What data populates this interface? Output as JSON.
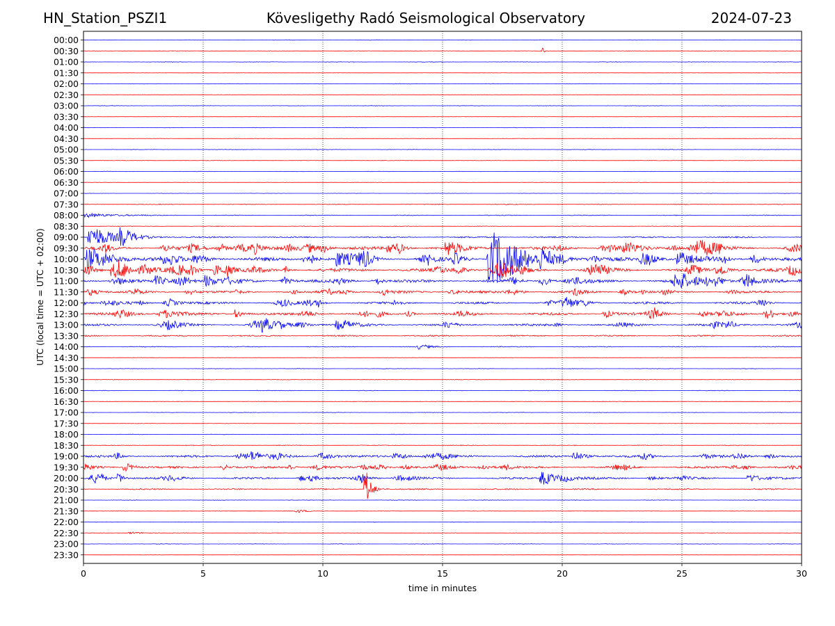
{
  "header": {
    "station": "HN_Station_PSZI1",
    "title": "Kövesligethy Radó Seismological Observatory",
    "date": "2024-07-23"
  },
  "colors": {
    "trace_a": "#0000ff",
    "trace_b": "#ff0000",
    "frame": "#000000",
    "grid": "#000000"
  },
  "chart_data": {
    "type": "line",
    "subtype": "helicorder",
    "title": "Kövesligethy Radó Seismological Observatory",
    "xlabel": "time in minutes",
    "ylabel": "UTC (local time = UTC + 02:00)",
    "xlim": [
      0,
      30
    ],
    "x_ticks": [
      "0",
      "5",
      "10",
      "15",
      "20",
      "25",
      "30"
    ],
    "x_gridlines": [
      5,
      10,
      15,
      20,
      25
    ],
    "row_labels": [
      "00:00",
      "00:30",
      "01:00",
      "01:30",
      "02:00",
      "02:30",
      "03:00",
      "03:30",
      "04:00",
      "04:30",
      "05:00",
      "05:30",
      "06:00",
      "06:30",
      "07:00",
      "07:30",
      "08:00",
      "08:30",
      "09:00",
      "09:30",
      "10:00",
      "10:30",
      "11:00",
      "11:30",
      "12:00",
      "12:30",
      "13:00",
      "13:30",
      "14:00",
      "14:30",
      "15:00",
      "15:30",
      "16:00",
      "16:30",
      "17:00",
      "17:30",
      "18:00",
      "18:30",
      "19:00",
      "19:30",
      "20:00",
      "20:30",
      "21:00",
      "21:30",
      "22:00",
      "22:30",
      "23:00",
      "23:30"
    ],
    "row_colors": [
      "blue",
      "red"
    ],
    "row_amplitudes": [
      0.3,
      0.3,
      0.3,
      0.2,
      0.3,
      0.2,
      0.3,
      0.2,
      0.3,
      0.3,
      0.3,
      0.3,
      0.3,
      0.3,
      0.2,
      0.5,
      0.5,
      0.4,
      1.0,
      2.2,
      2.6,
      2.4,
      2.2,
      1.7,
      1.7,
      1.8,
      1.6,
      1.0,
      0.6,
      0.3,
      0.3,
      0.4,
      0.4,
      0.3,
      0.3,
      0.3,
      0.3,
      0.5,
      1.6,
      1.5,
      1.4,
      0.9,
      0.3,
      0.3,
      0.3,
      0.3,
      0.3,
      0.2
    ],
    "events": [
      {
        "row": 1,
        "minute": 19.2,
        "amp": 4,
        "dur": 0.1
      },
      {
        "row": 16,
        "minute": 0.3,
        "amp": 3,
        "dur": 1.5
      },
      {
        "row": 18,
        "minute": 0.5,
        "amp": 14,
        "dur": 1.2
      },
      {
        "row": 18,
        "minute": 1.7,
        "amp": 10,
        "dur": 0.6
      },
      {
        "row": 19,
        "minute": 12.8,
        "amp": 8,
        "dur": 0.4
      },
      {
        "row": 19,
        "minute": 15.3,
        "amp": 9,
        "dur": 0.8
      },
      {
        "row": 20,
        "minute": 0.5,
        "amp": 12,
        "dur": 1.3
      },
      {
        "row": 20,
        "minute": 10.7,
        "amp": 10,
        "dur": 0.5
      },
      {
        "row": 20,
        "minute": 17.3,
        "amp": 30,
        "dur": 1.5
      },
      {
        "row": 20,
        "minute": 25.0,
        "amp": 9,
        "dur": 0.8
      },
      {
        "row": 21,
        "minute": 1.3,
        "amp": 8,
        "dur": 0.6
      },
      {
        "row": 21,
        "minute": 5.6,
        "amp": 7,
        "dur": 0.6
      },
      {
        "row": 22,
        "minute": 5.2,
        "amp": 8,
        "dur": 0.6
      },
      {
        "row": 22,
        "minute": 3.1,
        "amp": 6,
        "dur": 0.5
      },
      {
        "row": 25,
        "minute": 6.4,
        "amp": 6,
        "dur": 0.4
      },
      {
        "row": 26,
        "minute": 7.6,
        "amp": 6,
        "dur": 0.7
      },
      {
        "row": 26,
        "minute": 10.7,
        "amp": 5,
        "dur": 0.6
      },
      {
        "row": 28,
        "minute": 14.1,
        "amp": 3,
        "dur": 0.6
      },
      {
        "row": 38,
        "minute": 20.6,
        "amp": 6,
        "dur": 0.6
      },
      {
        "row": 39,
        "minute": 1.8,
        "amp": 6,
        "dur": 0.5
      },
      {
        "row": 39,
        "minute": 0.1,
        "amp": 5,
        "dur": 0.3
      },
      {
        "row": 40,
        "minute": 1.5,
        "amp": 7,
        "dur": 0.3
      },
      {
        "row": 40,
        "minute": 19.3,
        "amp": 9,
        "dur": 0.8
      },
      {
        "row": 40,
        "minute": 27.9,
        "amp": 5,
        "dur": 0.6
      },
      {
        "row": 41,
        "minute": 11.8,
        "amp": 30,
        "dur": 0.3
      },
      {
        "row": 43,
        "minute": 9.0,
        "amp": 2,
        "dur": 0.6
      },
      {
        "row": 45,
        "minute": 2.1,
        "amp": 1.5,
        "dur": 0.8
      }
    ]
  }
}
